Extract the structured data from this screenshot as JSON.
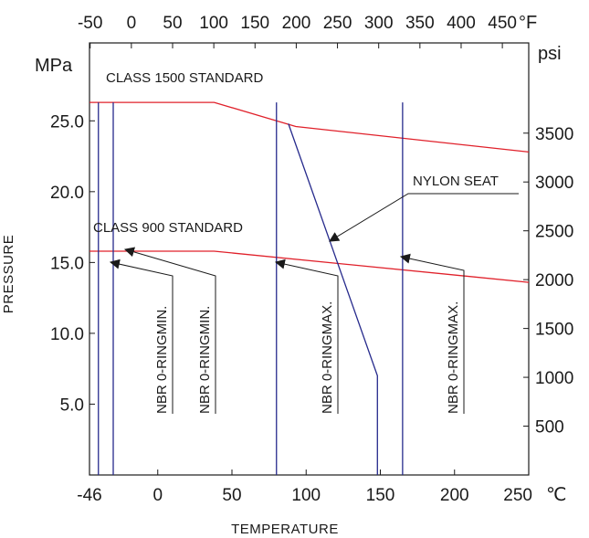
{
  "chart_data": {
    "type": "line",
    "x_bottom": {
      "title": "TEMPERATURE",
      "unit": "℃",
      "ticks": [
        {
          "v": -46,
          "label": "-46"
        },
        {
          "v": 0,
          "label": "0"
        },
        {
          "v": 50,
          "label": "50"
        },
        {
          "v": 100,
          "label": "100"
        },
        {
          "v": 150,
          "label": "150"
        },
        {
          "v": 200,
          "label": "200"
        },
        {
          "v": 250,
          "label": "250"
        }
      ],
      "range": [
        -46,
        250
      ]
    },
    "x_top": {
      "unit": "°F",
      "ticks": [
        {
          "v": -50,
          "label": "-50"
        },
        {
          "v": 0,
          "label": "0"
        },
        {
          "v": 50,
          "label": "50"
        },
        {
          "v": 100,
          "label": "100"
        },
        {
          "v": 150,
          "label": "150"
        },
        {
          "v": 200,
          "label": "200"
        },
        {
          "v": 250,
          "label": "250"
        },
        {
          "v": 300,
          "label": "300"
        },
        {
          "v": 350,
          "label": "350"
        },
        {
          "v": 400,
          "label": "400"
        },
        {
          "v": 450,
          "label": "450"
        }
      ]
    },
    "y_left": {
      "title": "PRESSURE",
      "unit": "MPa",
      "ticks": [
        {
          "v": 5,
          "label": "5.0"
        },
        {
          "v": 10,
          "label": "10.0"
        },
        {
          "v": 15,
          "label": "15.0"
        },
        {
          "v": 20,
          "label": "20.0"
        },
        {
          "v": 25,
          "label": "25.0"
        }
      ],
      "range": [
        0,
        30.5
      ]
    },
    "y_right": {
      "unit": "psi",
      "ticks": [
        {
          "v": 500,
          "label": "500"
        },
        {
          "v": 1000,
          "label": "1000"
        },
        {
          "v": 1500,
          "label": "1500"
        },
        {
          "v": 2000,
          "label": "2000"
        },
        {
          "v": 2500,
          "label": "2500"
        },
        {
          "v": 3000,
          "label": "3000"
        },
        {
          "v": 3500,
          "label": "3500"
        }
      ]
    },
    "series": [
      {
        "name": "CLASS 1500 STANDARD",
        "color": "#e0202a",
        "points": [
          [
            -46,
            26.3
          ],
          [
            38,
            26.3
          ],
          [
            93,
            24.6
          ],
          [
            250,
            22.8
          ]
        ]
      },
      {
        "name": "CLASS 900 STANDARD",
        "color": "#e0202a",
        "points": [
          [
            -46,
            15.8
          ],
          [
            38,
            15.8
          ],
          [
            250,
            13.6
          ]
        ]
      },
      {
        "name": "NYLON SEAT",
        "color": "#262a8c",
        "points": [
          [
            88,
            24.8
          ],
          [
            148,
            7.0
          ],
          [
            148,
            0
          ]
        ]
      }
    ],
    "vlines": [
      {
        "x": -40,
        "color": "#262a8c"
      },
      {
        "x": -30,
        "color": "#262a8c"
      },
      {
        "x": 80,
        "color": "#262a8c"
      },
      {
        "x": 165,
        "color": "#262a8c"
      }
    ],
    "annotations": [
      {
        "text": "CLASS 1500 STANDARD"
      },
      {
        "text": "CLASS 900 STANDARD"
      },
      {
        "text": "NYLON SEAT"
      },
      {
        "text": "NBR 0-RINGMIN."
      },
      {
        "text": "NBR 0-RINGMIN."
      },
      {
        "text": "NBR 0-RINGMAX."
      },
      {
        "text": "NBR 0-RINGMAX."
      }
    ],
    "grid": false,
    "legend": "none"
  }
}
